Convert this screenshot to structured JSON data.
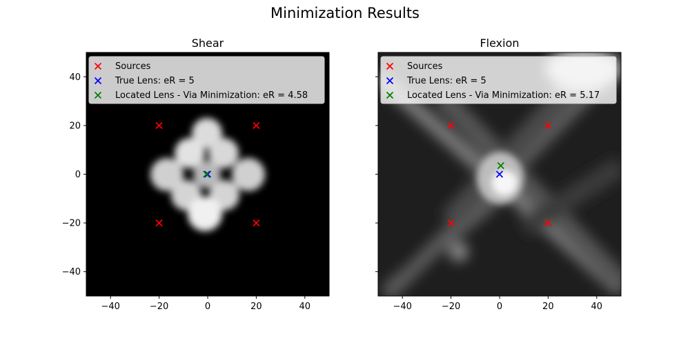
{
  "title": "Minimization Results",
  "chart_data": [
    {
      "type": "scatter",
      "title": "Shear",
      "xlim": [
        -50,
        50
      ],
      "ylim": [
        -50,
        50
      ],
      "xticks": [
        -40,
        -20,
        0,
        20,
        40
      ],
      "yticks": [
        -40,
        -20,
        0,
        20,
        40
      ],
      "background": "heatmap",
      "legend_position": "upper-left",
      "series": [
        {
          "name": "Sources",
          "marker": "x",
          "color": "#ff0000",
          "x": [
            -20,
            20,
            -20,
            20
          ],
          "y": [
            20,
            20,
            -20,
            -20
          ]
        },
        {
          "name": "True Lens: eR = 5",
          "marker": "x",
          "color": "#0000ff",
          "x": [
            0
          ],
          "y": [
            0
          ]
        },
        {
          "name": "Located Lens - Via Minimization: eR = 4.58",
          "marker": "x",
          "color": "#008000",
          "x": [
            -0.5
          ],
          "y": [
            0
          ]
        }
      ]
    },
    {
      "type": "scatter",
      "title": "Flexion",
      "xlim": [
        -50,
        50
      ],
      "ylim": [
        -50,
        50
      ],
      "xticks": [
        -40,
        -20,
        0,
        20,
        40
      ],
      "yticks": [
        -40,
        -20,
        0,
        20,
        40
      ],
      "background": "heatmap",
      "legend_position": "upper-left",
      "series": [
        {
          "name": "Sources",
          "marker": "x",
          "color": "#ff0000",
          "x": [
            -20,
            20,
            -20,
            20
          ],
          "y": [
            20,
            20,
            -20,
            -20
          ]
        },
        {
          "name": "True Lens: eR = 5",
          "marker": "x",
          "color": "#0000ff",
          "x": [
            0
          ],
          "y": [
            0
          ]
        },
        {
          "name": "Located Lens - Via Minimization: eR = 5.17",
          "marker": "x",
          "color": "#008000",
          "x": [
            0.5
          ],
          "y": [
            3.5
          ]
        }
      ]
    }
  ]
}
